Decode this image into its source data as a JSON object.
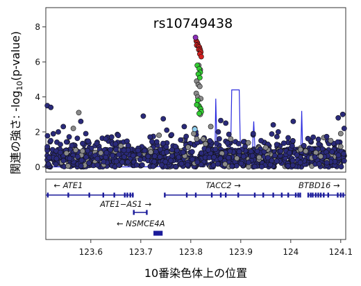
{
  "chart_data": {
    "type": "scatter",
    "title": "rs10749438",
    "ylabel_prefix": "関連の強さ: -log",
    "ylabel_sub": "10",
    "ylabel_suffix": "(p-value)",
    "xlabel": "10番染色体上の位置",
    "xlim": [
      123.51,
      124.11
    ],
    "ylim": [
      -0.3,
      9.1
    ],
    "yticks": [
      0,
      2,
      4,
      6,
      8
    ],
    "xticks": [
      123.6,
      123.7,
      123.8,
      123.9,
      124,
      124.1
    ],
    "xtick_labels": [
      "123.6",
      "123.7",
      "123.8",
      "123.9",
      "124",
      "124.1"
    ],
    "colors": {
      "background_points": "#2a2a7a",
      "grey_points": "#8a8a8a",
      "red_points": "#d42020",
      "lead_snp": "#8a2fb8",
      "green_points": "#33cc33",
      "lightblue_points": "#8fd0f0",
      "recomb_line": "#2a2adf",
      "gene_color": "#1a1a9a"
    },
    "lead_snp": {
      "x": 123.8095,
      "y": 7.4
    },
    "red_points": [
      [
        123.811,
        7.2
      ],
      [
        123.813,
        7.1
      ],
      [
        123.814,
        7.0
      ],
      [
        123.812,
        6.95
      ],
      [
        123.815,
        6.9
      ],
      [
        123.817,
        6.85
      ],
      [
        123.818,
        6.75
      ],
      [
        123.816,
        6.7
      ],
      [
        123.819,
        6.65
      ],
      [
        123.82,
        6.55
      ],
      [
        123.818,
        6.45
      ],
      [
        123.821,
        6.3
      ]
    ],
    "green_points": [
      [
        123.813,
        5.8
      ],
      [
        123.817,
        5.6
      ],
      [
        123.819,
        5.4
      ],
      [
        123.815,
        5.3
      ],
      [
        123.818,
        5.1
      ],
      [
        123.814,
        3.8
      ],
      [
        123.816,
        3.5
      ],
      [
        123.818,
        3.4
      ],
      [
        123.82,
        3.3
      ],
      [
        123.812,
        3.55
      ],
      [
        123.821,
        3.15
      ],
      [
        123.817,
        3.05
      ]
    ],
    "grey_points": [
      [
        123.816,
        5.8
      ],
      [
        123.819,
        5.55
      ],
      [
        123.812,
        4.9
      ],
      [
        123.815,
        4.7
      ],
      [
        123.818,
        4.6
      ],
      [
        123.811,
        4.2
      ],
      [
        123.814,
        4.0
      ],
      [
        123.82,
        3.9
      ],
      [
        123.819,
        3.0
      ],
      [
        123.808,
        2.2
      ],
      [
        123.806,
        1.9
      ],
      [
        123.812,
        1.6
      ],
      [
        123.576,
        3.1
      ],
      [
        123.565,
        2.2
      ],
      [
        123.72,
        0.85
      ],
      [
        123.84,
        2.3
      ],
      [
        124.1,
        1.9
      ],
      [
        124.08,
        1.5
      ],
      [
        123.95,
        1.1
      ],
      [
        124.03,
        0.9
      ],
      [
        123.88,
        1.6
      ],
      [
        123.66,
        1.2
      ],
      [
        123.62,
        0.8
      ],
      [
        124.06,
        0.6
      ]
    ],
    "lightblue_points": [
      [
        123.808,
        2.15
      ]
    ],
    "recomb_line": [
      [
        123.51,
        0.0
      ],
      [
        123.7,
        0.0
      ],
      [
        123.8,
        0.05
      ],
      [
        123.84,
        0.15
      ],
      [
        123.848,
        0.2
      ],
      [
        123.85,
        3.9
      ],
      [
        123.853,
        0.3
      ],
      [
        123.872,
        0.4
      ],
      [
        123.88,
        1.25
      ],
      [
        123.882,
        4.4
      ],
      [
        123.897,
        4.4
      ],
      [
        123.899,
        1.35
      ],
      [
        123.905,
        0.5
      ],
      [
        123.923,
        0.6
      ],
      [
        123.926,
        2.6
      ],
      [
        123.929,
        0.6
      ],
      [
        123.99,
        0.45
      ],
      [
        124.0,
        0.5
      ],
      [
        124.02,
        0.6
      ],
      [
        124.022,
        3.2
      ],
      [
        124.024,
        0.65
      ],
      [
        124.06,
        0.55
      ],
      [
        124.11,
        0.5
      ]
    ],
    "notable_dark_points": [
      [
        123.512,
        3.5
      ],
      [
        123.52,
        3.4
      ],
      [
        123.535,
        2.0
      ],
      [
        123.545,
        2.3
      ],
      [
        123.58,
        2.6
      ],
      [
        123.59,
        1.9
      ],
      [
        123.63,
        1.6
      ],
      [
        123.655,
        1.8
      ],
      [
        123.705,
        2.9
      ],
      [
        123.745,
        2.75
      ],
      [
        123.752,
        2.1
      ],
      [
        123.787,
        2.3
      ],
      [
        123.81,
        2.0
      ],
      [
        123.855,
        2.0
      ],
      [
        123.86,
        2.65
      ],
      [
        123.87,
        2.5
      ],
      [
        123.925,
        1.9
      ],
      [
        123.965,
        2.4
      ],
      [
        123.975,
        2.0
      ],
      [
        124.005,
        2.6
      ],
      [
        124.095,
        2.8
      ],
      [
        124.104,
        3.0
      ],
      [
        124.11,
        2.2
      ],
      [
        124.045,
        1.7
      ]
    ],
    "genes": [
      {
        "name": "ATE1",
        "arrow": "←",
        "label_pos": "before",
        "start": 123.51,
        "end": 123.686,
        "row": 1,
        "label_at": 123.555,
        "exons": [
          123.514,
          123.555,
          123.597,
          123.625,
          123.647,
          123.668,
          123.673,
          123.679,
          123.684
        ]
      },
      {
        "name": "TACC2",
        "arrow": "→",
        "label_pos": "after",
        "start": 123.748,
        "end": 124.02,
        "row": 1,
        "label_at": 123.865,
        "exons": [
          123.748,
          123.792,
          123.81,
          123.842,
          123.86,
          123.87,
          123.895,
          123.928,
          123.945,
          123.965,
          123.982,
          123.995,
          124.01,
          124.015,
          124.019
        ]
      },
      {
        "name": "BTBD16",
        "arrow": "→",
        "label_pos": "after",
        "start": 124.035,
        "end": 124.11,
        "row": 1,
        "label_at": 124.057,
        "exons": [
          124.035,
          124.04,
          124.044,
          124.05,
          124.055,
          124.06,
          124.066,
          124.075,
          124.094,
          124.1,
          124.105
        ]
      },
      {
        "name": "ATE1−AS1",
        "arrow": "→",
        "label_pos": "after",
        "start": 123.686,
        "end": 123.712,
        "row": 2,
        "label_at": 123.67,
        "exons": [
          123.686,
          123.712
        ]
      },
      {
        "name": "NSMCE4A",
        "arrow": "←",
        "label_pos": "before",
        "start": 123.727,
        "end": 123.742,
        "row": 3,
        "label_at": 123.7,
        "exons": [
          123.727,
          123.73,
          123.733,
          123.736,
          123.739,
          123.742
        ]
      }
    ]
  }
}
